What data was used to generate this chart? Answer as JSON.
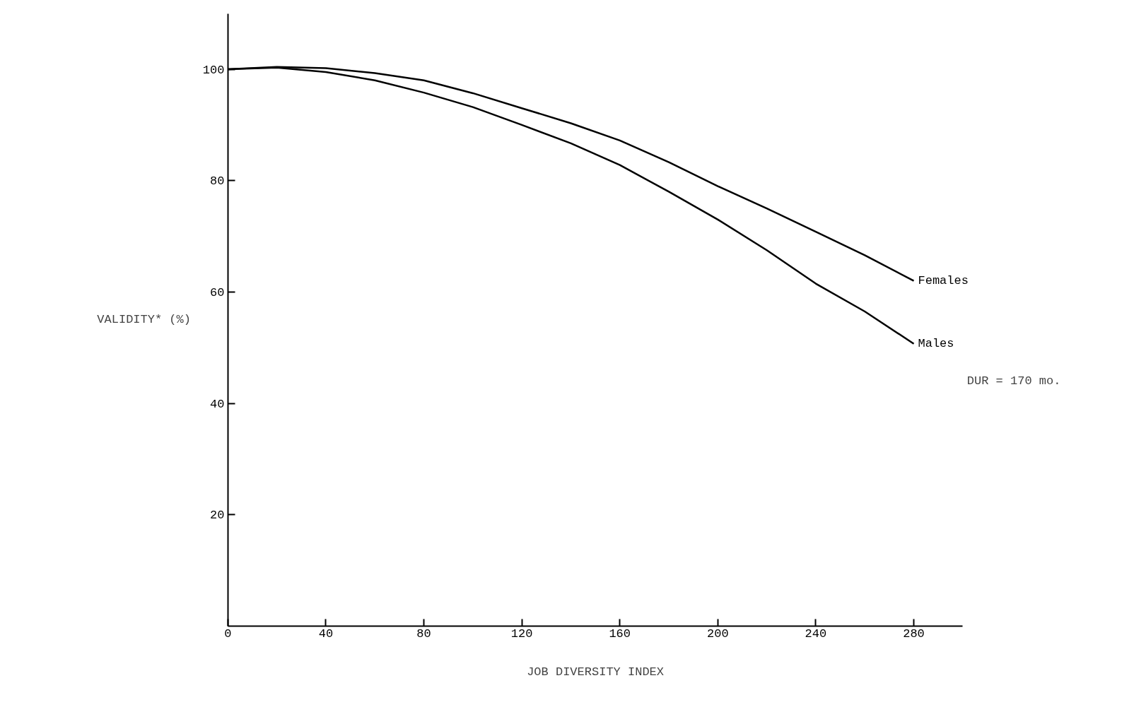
{
  "chart_data": {
    "type": "line",
    "xlabel": "JOB DIVERSITY INDEX",
    "ylabel": "VALIDITY* (%)",
    "x": [
      0,
      20,
      40,
      60,
      80,
      100,
      120,
      140,
      160,
      180,
      200,
      220,
      240,
      260,
      280
    ],
    "series": [
      {
        "name": "Females",
        "color": "#000000",
        "values": [
          100,
          100.4,
          100.2,
          99.3,
          98,
          95.7,
          93,
          90.3,
          87.2,
          83.3,
          79,
          75,
          70.8,
          66.6,
          62
        ]
      },
      {
        "name": "Males",
        "color": "#000000",
        "values": [
          100,
          100.3,
          99.5,
          98,
          95.8,
          93.2,
          90,
          86.7,
          82.8,
          78,
          73,
          67.5,
          61.5,
          56.5,
          50.7
        ]
      }
    ],
    "xlim": [
      0,
      300
    ],
    "ylim": [
      0,
      110
    ],
    "xticks": [
      0,
      40,
      80,
      120,
      160,
      200,
      240,
      280
    ],
    "yticks": [
      20,
      40,
      60,
      80,
      100
    ],
    "grid": false,
    "legend": false,
    "marker": "none",
    "line_style": "solid",
    "annotations": [
      "DUR = 170 mo."
    ]
  }
}
